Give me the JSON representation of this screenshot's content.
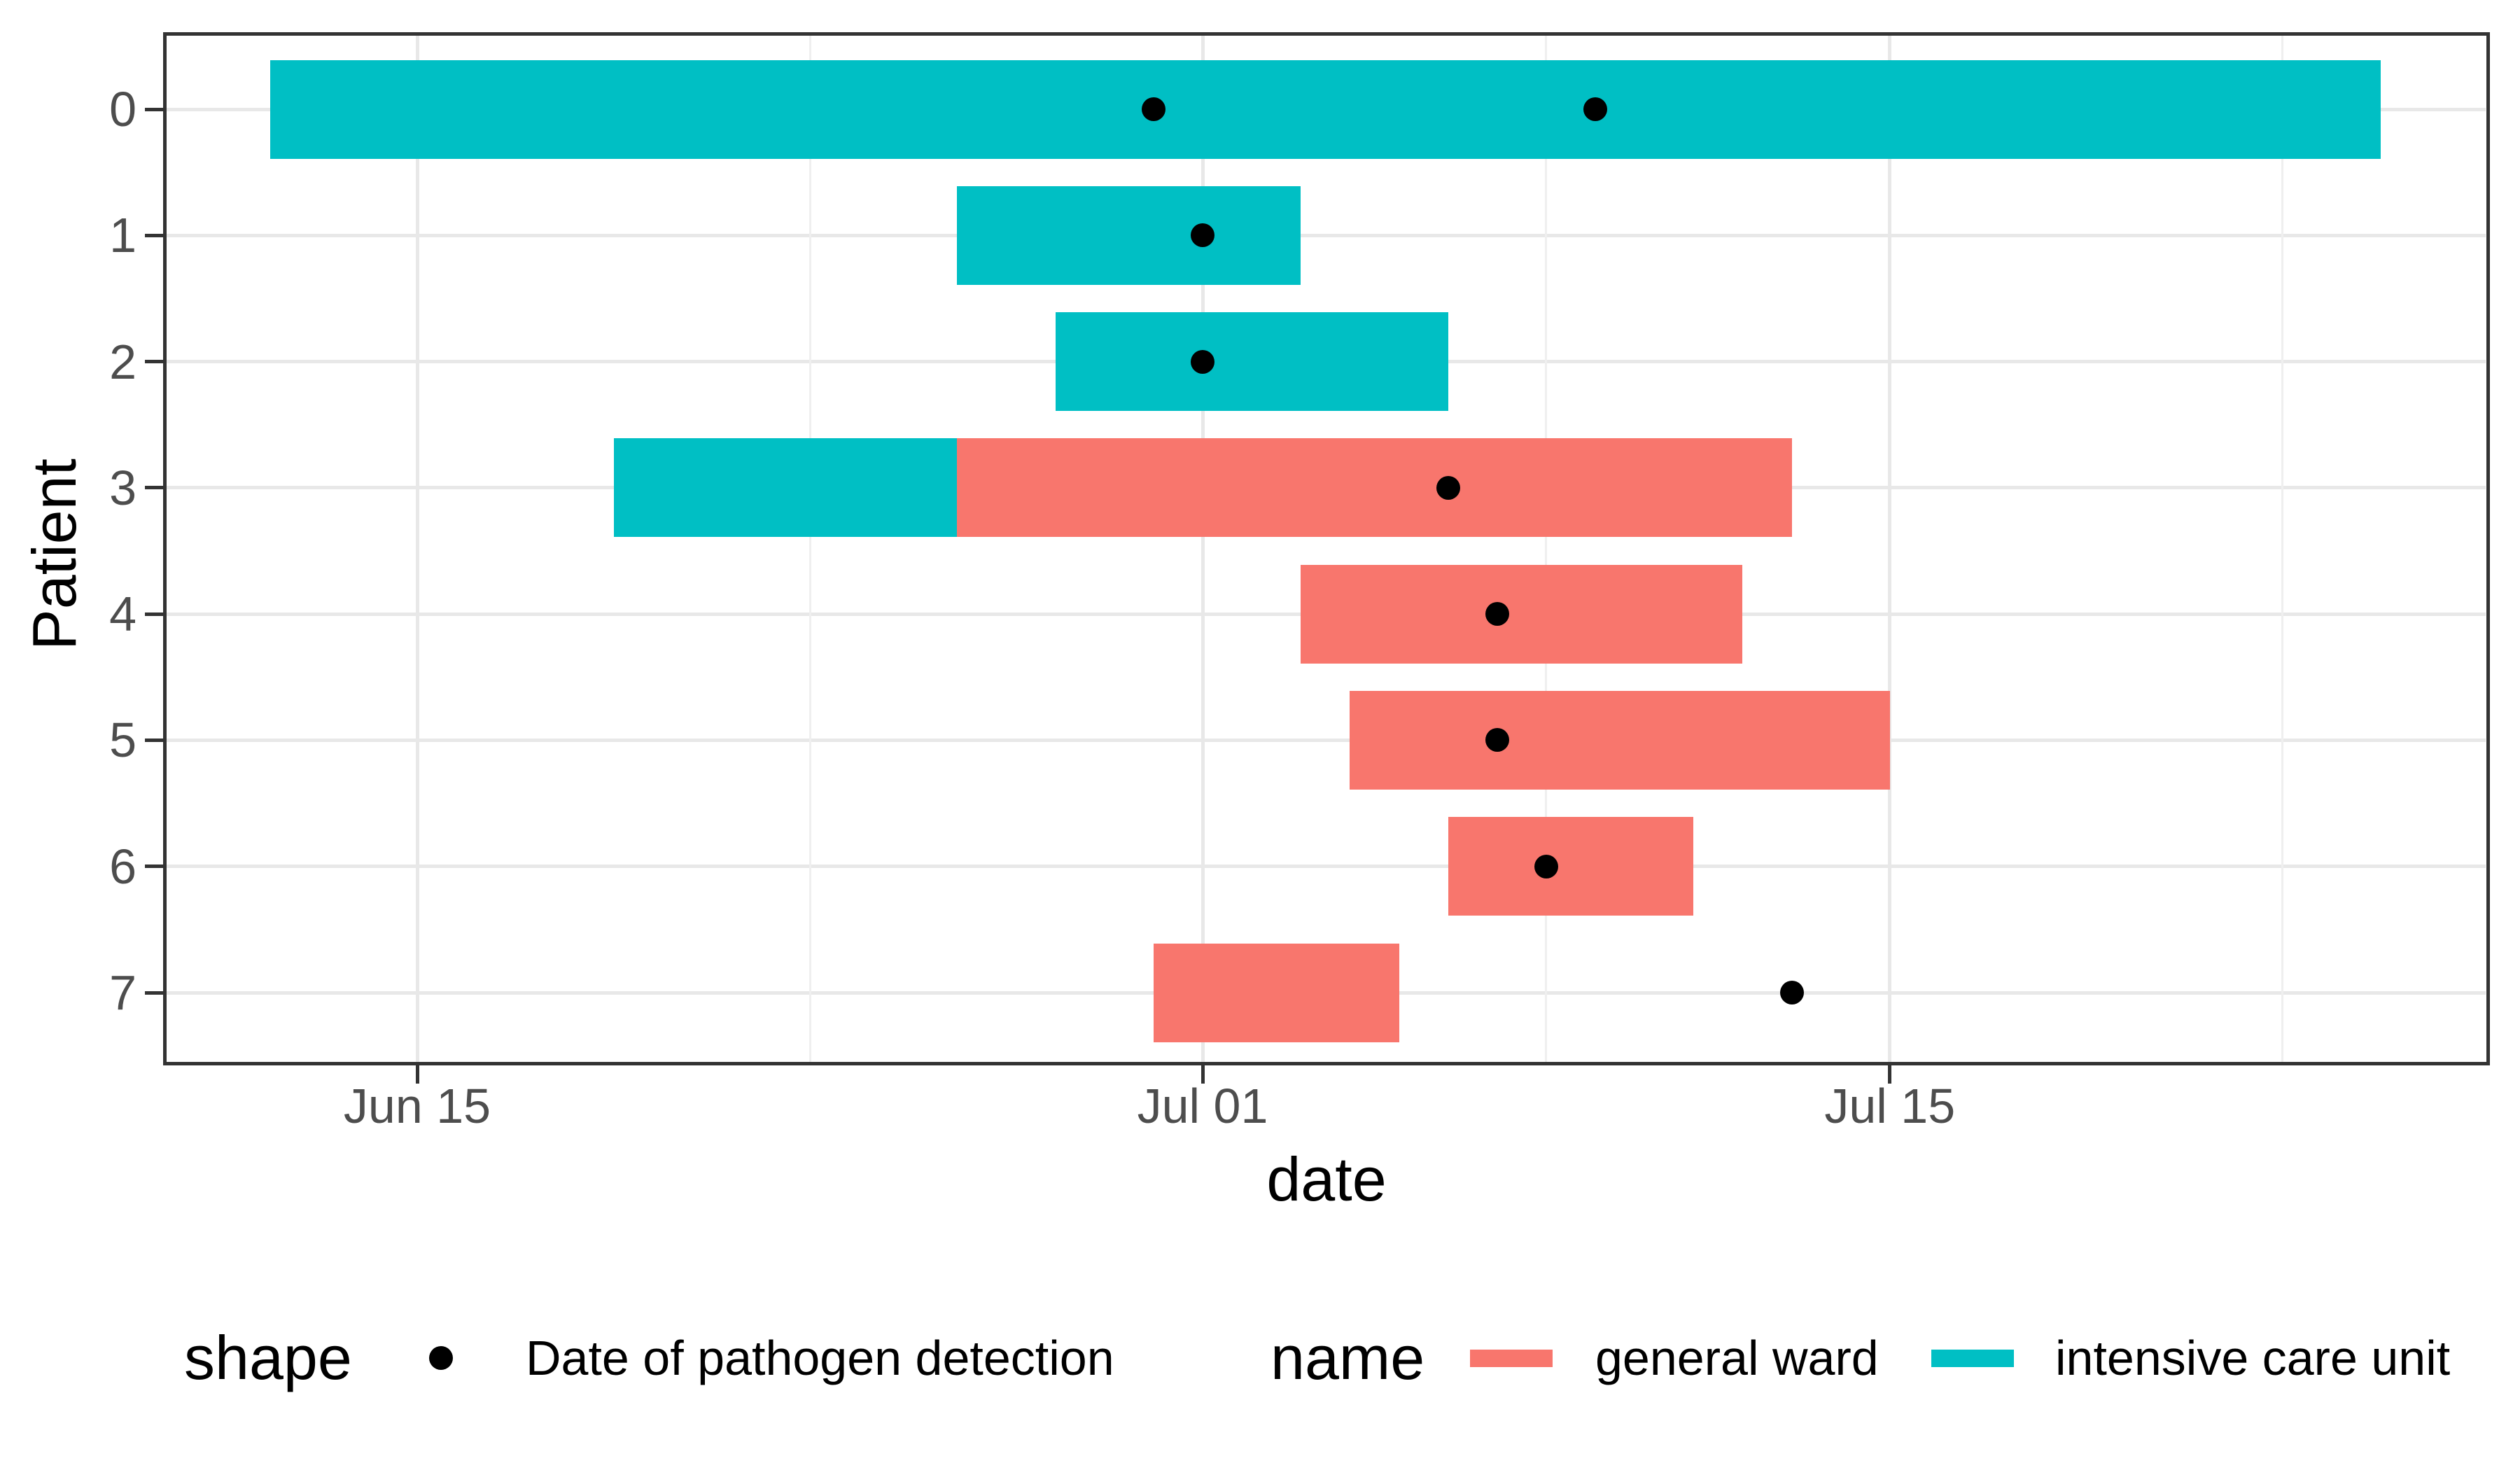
{
  "chart_data": {
    "type": "bar",
    "variant": "horizontal-gantt",
    "title": "",
    "xlabel": "date",
    "ylabel": "Patient",
    "grid": true,
    "legend_position": "bottom",
    "x_axis": {
      "note": "day index = days since Jun 0 (Jun 15 = 15, Jul 01 = 31)",
      "domain_days": [
        9.9,
        57.2
      ],
      "major_ticks": [
        {
          "label": "Jun 15",
          "day": 15
        },
        {
          "label": "Jul 01",
          "day": 31
        },
        {
          "label": "Jul 15",
          "day": 45
        }
      ],
      "minor_gridline_days": [
        23,
        38,
        53
      ]
    },
    "y_axis": {
      "tick_labels": [
        "0",
        "1",
        "2",
        "3",
        "4",
        "5",
        "6",
        "7"
      ]
    },
    "series_colors": {
      "general ward": "#F8766D",
      "intensive care unit": "#00BFC4"
    },
    "patients": [
      {
        "id": "0",
        "stays": [
          {
            "ward": "intensive care unit",
            "start": {
              "date": "Jun 12",
              "day": 12
            },
            "end": {
              "date": "Jul 25",
              "day": 55
            }
          }
        ],
        "detections": [
          {
            "date": "Jun 30",
            "day": 30
          },
          {
            "date": "Jul 09",
            "day": 39
          }
        ]
      },
      {
        "id": "1",
        "stays": [
          {
            "ward": "intensive care unit",
            "start": {
              "date": "Jun 26",
              "day": 26
            },
            "end": {
              "date": "Jul 03",
              "day": 33
            }
          }
        ],
        "detections": [
          {
            "date": "Jul 01",
            "day": 31
          }
        ]
      },
      {
        "id": "2",
        "stays": [
          {
            "ward": "intensive care unit",
            "start": {
              "date": "Jun 28",
              "day": 28
            },
            "end": {
              "date": "Jul 06",
              "day": 36
            }
          }
        ],
        "detections": [
          {
            "date": "Jul 01",
            "day": 31
          }
        ]
      },
      {
        "id": "3",
        "stays": [
          {
            "ward": "intensive care unit",
            "start": {
              "date": "Jun 19",
              "day": 19
            },
            "end": {
              "date": "Jun 26",
              "day": 26
            }
          },
          {
            "ward": "general ward",
            "start": {
              "date": "Jun 26",
              "day": 26
            },
            "end": {
              "date": "Jul 13",
              "day": 43
            }
          }
        ],
        "detections": [
          {
            "date": "Jul 06",
            "day": 36
          }
        ]
      },
      {
        "id": "4",
        "stays": [
          {
            "ward": "general ward",
            "start": {
              "date": "Jul 03",
              "day": 33
            },
            "end": {
              "date": "Jul 12",
              "day": 42
            }
          }
        ],
        "detections": [
          {
            "date": "Jul 07",
            "day": 37
          }
        ]
      },
      {
        "id": "5",
        "stays": [
          {
            "ward": "general ward",
            "start": {
              "date": "Jul 04",
              "day": 34
            },
            "end": {
              "date": "Jul 15",
              "day": 45
            }
          }
        ],
        "detections": [
          {
            "date": "Jul 07",
            "day": 37
          }
        ]
      },
      {
        "id": "6",
        "stays": [
          {
            "ward": "general ward",
            "start": {
              "date": "Jul 06",
              "day": 36
            },
            "end": {
              "date": "Jul 11",
              "day": 41
            }
          }
        ],
        "detections": [
          {
            "date": "Jul 08",
            "day": 38
          }
        ]
      },
      {
        "id": "7",
        "stays": [
          {
            "ward": "general ward",
            "start": {
              "date": "Jun 30",
              "day": 30
            },
            "end": {
              "date": "Jul 05",
              "day": 35
            }
          }
        ],
        "detections": [
          {
            "date": "Jul 13",
            "day": 43
          }
        ]
      }
    ],
    "legend": {
      "shape_title": "shape",
      "shape_item": "Date of pathogen detection",
      "name_title": "name",
      "name_items": [
        "general ward",
        "intensive care unit"
      ]
    },
    "styles": {
      "dot_color": "#000000",
      "grid_major_color": "#E8E8E8",
      "grid_minor_color": "#EFEFEF",
      "panel_border_color": "#333333",
      "tick_label_color": "#4D4D4D",
      "axis_title_color": "#000000",
      "background": "#FFFFFF"
    }
  }
}
